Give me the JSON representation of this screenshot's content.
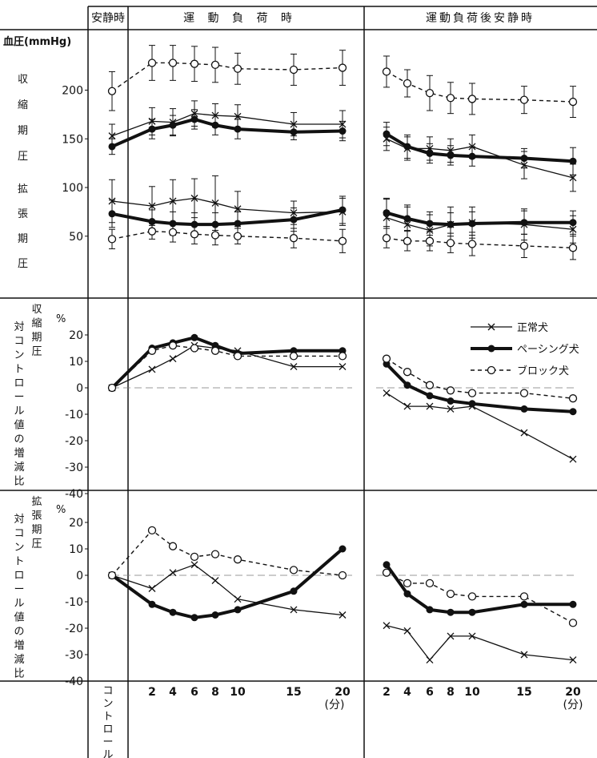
{
  "headers": {
    "rest": "安静時",
    "exercise": "運 動 負 荷 時",
    "post": "運動負荷後安静時"
  },
  "x_axis": {
    "control_label": "コントロール",
    "exercise_ticks": [
      "2",
      "4",
      "6",
      "8",
      "10",
      "15",
      "20"
    ],
    "post_ticks": [
      "2",
      "4",
      "6",
      "8",
      "10",
      "15",
      "20"
    ],
    "unit": "(分)"
  },
  "legend": [
    {
      "name": "正常犬",
      "style": "thin-x"
    },
    {
      "name": "ペーシング犬",
      "style": "thick-filled-circle"
    },
    {
      "name": "ブロック犬",
      "style": "dashed-open-circle"
    }
  ],
  "colors": {
    "ink": "#111111",
    "grid": "#777777"
  },
  "chart_data": [
    {
      "type": "line",
      "title": "",
      "ylabel": "血圧(mmHg)",
      "side_label_systolic": [
        "収",
        "縮",
        "期",
        "圧"
      ],
      "side_label_diastolic": [
        "拡",
        "張",
        "期",
        "圧"
      ],
      "y_ticks": [
        "200",
        "150",
        "100",
        "50"
      ],
      "ylim": [
        15,
        250
      ],
      "x": [
        "コントロール",
        "2",
        "4",
        "6",
        "8",
        "10",
        "15",
        "20",
        "post 2",
        "post 4",
        "post 6",
        "post 8",
        "post 10",
        "post 15",
        "post 20"
      ],
      "series": [
        {
          "name": "正常犬",
          "group": "systolic",
          "values": [
            153,
            168,
            167,
            176,
            174,
            173,
            165,
            165,
            150,
            140,
            140,
            138,
            142,
            123,
            110
          ]
        },
        {
          "name": "ペーシング犬",
          "group": "systolic",
          "values": [
            142,
            160,
            164,
            170,
            164,
            160,
            157,
            158,
            155,
            142,
            135,
            133,
            132,
            130,
            127
          ]
        },
        {
          "name": "ブロック犬",
          "group": "systolic",
          "values": [
            199,
            228,
            228,
            227,
            226,
            222,
            221,
            223,
            219,
            207,
            197,
            192,
            191,
            190,
            188
          ]
        },
        {
          "name": "正常犬",
          "group": "diastolic",
          "values": [
            86,
            81,
            86,
            89,
            84,
            78,
            74,
            75,
            69,
            62,
            56,
            62,
            64,
            62,
            57
          ]
        },
        {
          "name": "ペーシング犬",
          "group": "diastolic",
          "values": [
            73,
            65,
            63,
            62,
            62,
            63,
            67,
            77,
            74,
            68,
            63,
            62,
            63,
            64,
            64
          ]
        },
        {
          "name": "ブロック犬",
          "group": "diastolic",
          "values": [
            47,
            55,
            54,
            52,
            51,
            50,
            48,
            45,
            48,
            45,
            45,
            43,
            42,
            40,
            38
          ]
        }
      ],
      "error_bars": {
        "systolic_normal": [
          12,
          14,
          14,
          13,
          12,
          12,
          12,
          14,
          12,
          12,
          12,
          12,
          12,
          14,
          14
        ],
        "systolic_pacing": [
          8,
          10,
          10,
          10,
          10,
          10,
          8,
          10,
          12,
          12,
          10,
          10,
          10,
          10,
          14
        ],
        "systolic_block": [
          20,
          18,
          18,
          18,
          18,
          16,
          16,
          18,
          16,
          14,
          18,
          16,
          16,
          14,
          16
        ],
        "diastolic_normal": [
          22,
          20,
          22,
          20,
          28,
          18,
          12,
          14,
          20,
          20,
          16,
          18,
          16,
          16,
          14
        ],
        "diastolic_pacing": [
          14,
          12,
          12,
          12,
          12,
          12,
          12,
          14,
          14,
          12,
          12,
          12,
          12,
          12,
          12
        ],
        "diastolic_block": [
          10,
          8,
          10,
          10,
          10,
          8,
          10,
          12,
          10,
          10,
          10,
          10,
          12,
          12,
          12
        ]
      }
    },
    {
      "type": "line",
      "title": "",
      "percent_mark": "%",
      "ylabel": "収縮期圧対コントロール値の増減比",
      "y_ticks": [
        "20",
        "10",
        "0",
        "-10",
        "-20",
        "-30",
        "-40"
      ],
      "ylim": [
        -46,
        26
      ],
      "x": [
        "コントロール",
        "2",
        "4",
        "6",
        "8",
        "10",
        "15",
        "20",
        "post 2",
        "post 4",
        "post 6",
        "post 8",
        "post 10",
        "post 15",
        "post 20"
      ],
      "series": [
        {
          "name": "正常犬",
          "values": [
            0,
            7,
            11,
            16,
            15,
            14,
            8,
            8,
            -2,
            -7,
            -7,
            -8,
            -7,
            -17,
            -27
          ]
        },
        {
          "name": "ペーシング犬",
          "values": [
            0,
            15,
            17,
            19,
            16,
            13,
            14,
            14,
            9,
            1,
            -3,
            -5,
            -6,
            -8,
            -9
          ]
        },
        {
          "name": "ブロック犬",
          "values": [
            0,
            14,
            16,
            15,
            14,
            12,
            12,
            12,
            11,
            6,
            1,
            -1,
            -2,
            -2,
            -4
          ]
        }
      ]
    },
    {
      "type": "line",
      "title": "",
      "percent_mark": "%",
      "ylabel": "拡張期圧対コントロール値の増減比",
      "y_ticks": [
        "20",
        "10",
        "0",
        "-10",
        "-20",
        "-30",
        "-40"
      ],
      "ylim": [
        -46,
        26
      ],
      "x": [
        "コントロール",
        "2",
        "4",
        "6",
        "8",
        "10",
        "15",
        "20",
        "post 2",
        "post 4",
        "post 6",
        "post 8",
        "post 10",
        "post 15",
        "post 20"
      ],
      "series": [
        {
          "name": "正常犬",
          "values": [
            0,
            -5,
            1,
            4,
            -2,
            -9,
            -13,
            -15,
            -19,
            -21,
            -32,
            -23,
            -23,
            -30,
            -32
          ]
        },
        {
          "name": "ペーシング犬",
          "values": [
            0,
            -11,
            -14,
            -16,
            -15,
            -13,
            -6,
            10,
            4,
            -7,
            -13,
            -14,
            -14,
            -11,
            -11
          ]
        },
        {
          "name": "ブロック犬",
          "values": [
            0,
            17,
            11,
            7,
            8,
            6,
            2,
            0,
            1,
            -3,
            -3,
            -7,
            -8,
            -8,
            -18
          ]
        }
      ]
    }
  ]
}
